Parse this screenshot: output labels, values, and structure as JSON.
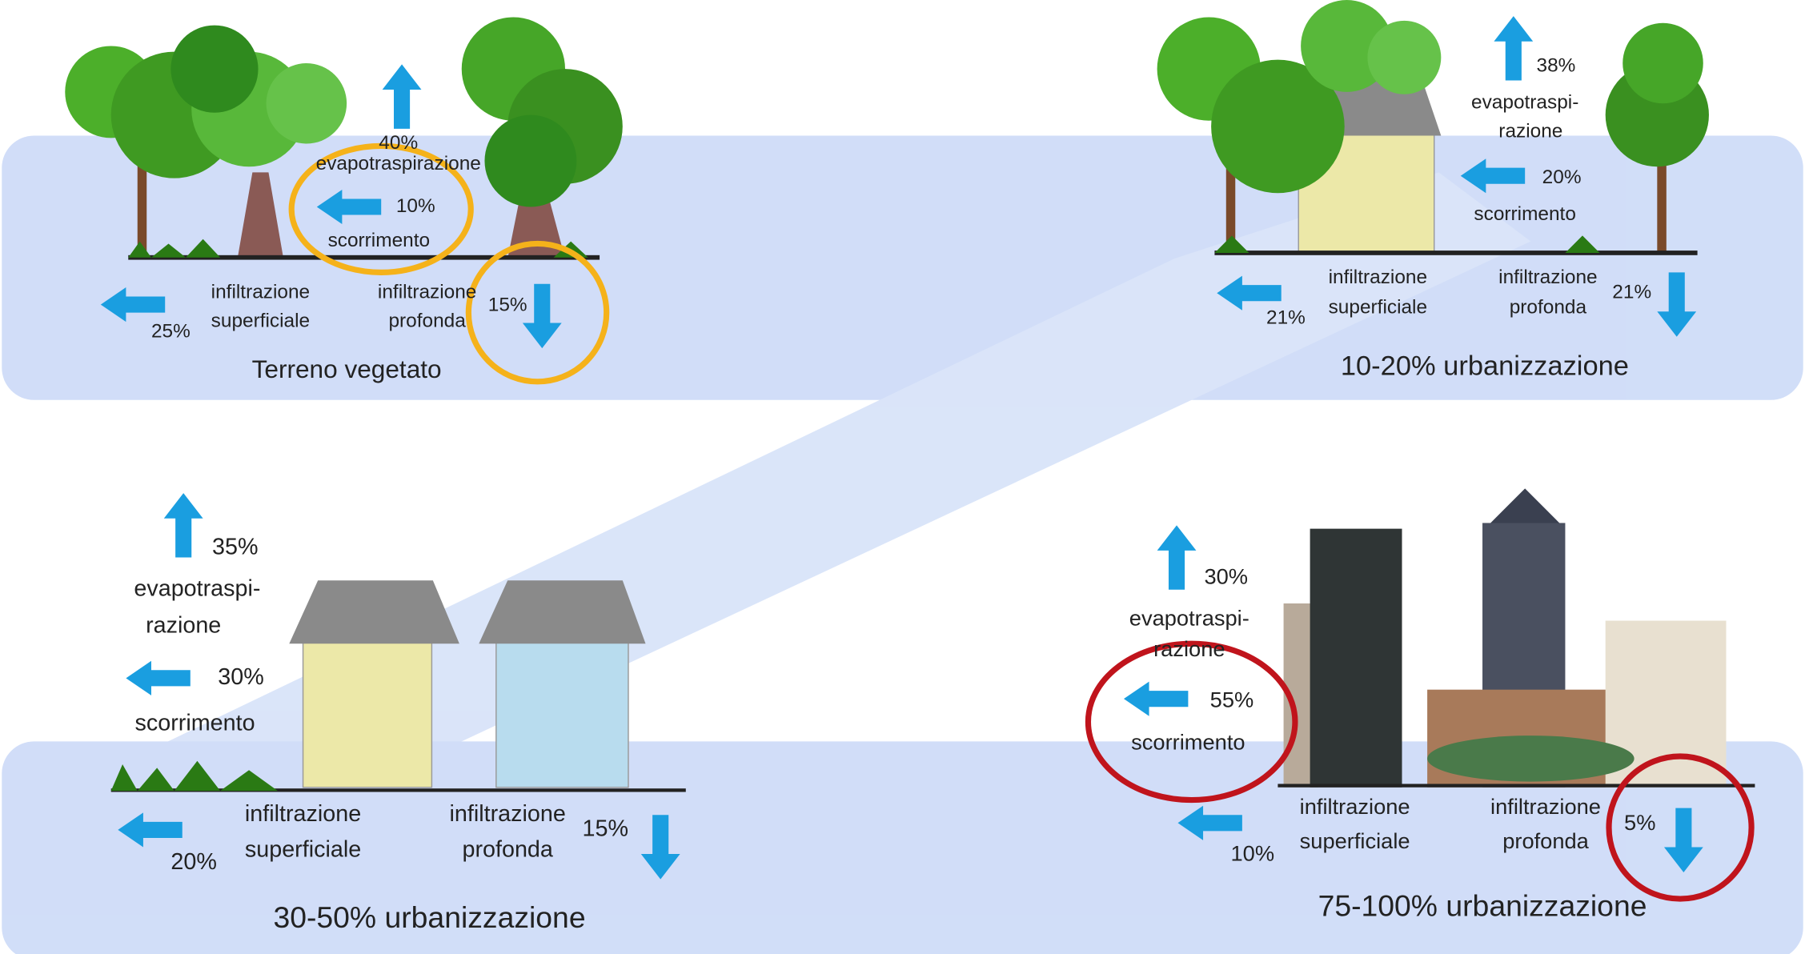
{
  "panels": [
    {
      "title": "Terreno vegetato",
      "evapotraspirazione": {
        "value": "40%",
        "label": [
          "evapotraspirazione"
        ]
      },
      "scorrimento": {
        "value": "10%",
        "label": [
          "scorrimento"
        ]
      },
      "infiltrazione_superficiale": {
        "value": "25%",
        "label": [
          "infiltrazione",
          "superficiale"
        ]
      },
      "infiltrazione_profonda": {
        "value": "15%",
        "label": [
          "infiltrazione",
          "profonda"
        ]
      }
    },
    {
      "title": "10-20% urbanizzazione",
      "evapotraspirazione": {
        "value": "38%",
        "label": [
          "evapotraspi-",
          "razione"
        ]
      },
      "scorrimento": {
        "value": "20%",
        "label": [
          "scorrimento"
        ]
      },
      "infiltrazione_superficiale": {
        "value": "21%",
        "label": [
          "infiltrazione",
          "superficiale"
        ]
      },
      "infiltrazione_profonda": {
        "value": "21%",
        "label": [
          "infiltrazione",
          "profonda"
        ]
      }
    },
    {
      "title": "30-50% urbanizzazione",
      "evapotraspirazione": {
        "value": "35%",
        "label": [
          "evapotraspi-",
          "razione"
        ]
      },
      "scorrimento": {
        "value": "30%",
        "label": [
          "scorrimento"
        ]
      },
      "infiltrazione_superficiale": {
        "value": "20%",
        "label": [
          "infiltrazione",
          "superficiale"
        ]
      },
      "infiltrazione_profonda": {
        "value": "15%",
        "label": [
          "infiltrazione",
          "profonda"
        ]
      }
    },
    {
      "title": "75-100% urbanizzazione",
      "evapotraspirazione": {
        "value": "30%",
        "label": [
          "evapotraspi-",
          "razione"
        ]
      },
      "scorrimento": {
        "value": "55%",
        "label": [
          "scorrimento"
        ]
      },
      "infiltrazione_superficiale": {
        "value": "10%",
        "label": [
          "infiltrazione",
          "superficiale"
        ]
      },
      "infiltrazione_profonda": {
        "value": "5%",
        "label": [
          "infiltrazione",
          "profonda"
        ]
      }
    }
  ]
}
